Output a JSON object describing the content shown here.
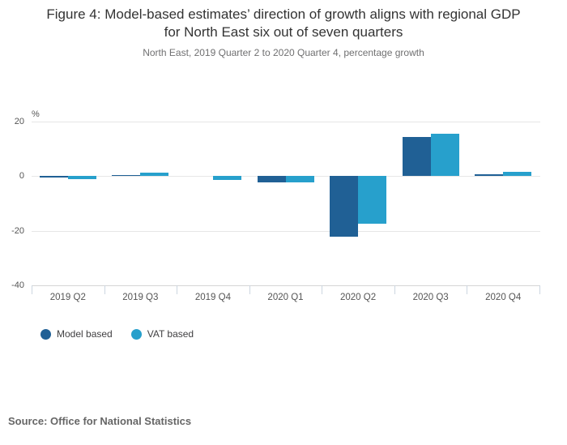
{
  "header": {
    "title": "Figure 4: Model-based estimates’ direction of growth aligns with regional GDP for North East six out of seven quarters",
    "subtitle": "North East, 2019 Quarter 2 to 2020 Quarter 4, percentage growth"
  },
  "chart_data": {
    "type": "bar",
    "title": "Figure 4: Model-based estimates’ direction of growth aligns with regional GDP for North East six out of seven quarters",
    "subtitle": "North East, 2019 Quarter 2 to 2020 Quarter 4, percentage growth",
    "categories": [
      "2019 Q2",
      "2019 Q3",
      "2019 Q4",
      "2020 Q1",
      "2020 Q2",
      "2020 Q3",
      "2020 Q4"
    ],
    "series": [
      {
        "name": "Model based",
        "color": "#206095",
        "values": [
          -0.5,
          0.3,
          0.0,
          -2.3,
          -22.1,
          14.2,
          0.6
        ]
      },
      {
        "name": "VAT based",
        "color": "#27a0cc",
        "values": [
          -1.1,
          1.2,
          -1.4,
          -2.5,
          -17.4,
          15.4,
          1.4
        ]
      }
    ],
    "unit_label": "%",
    "xlabel": "",
    "ylabel": "%",
    "yticks": [
      20,
      0,
      -20,
      -40
    ],
    "ylim": [
      -40,
      20
    ],
    "grid": true,
    "legend_position": "bottom-left"
  },
  "source": {
    "text": "Source: Office for National Statistics"
  }
}
